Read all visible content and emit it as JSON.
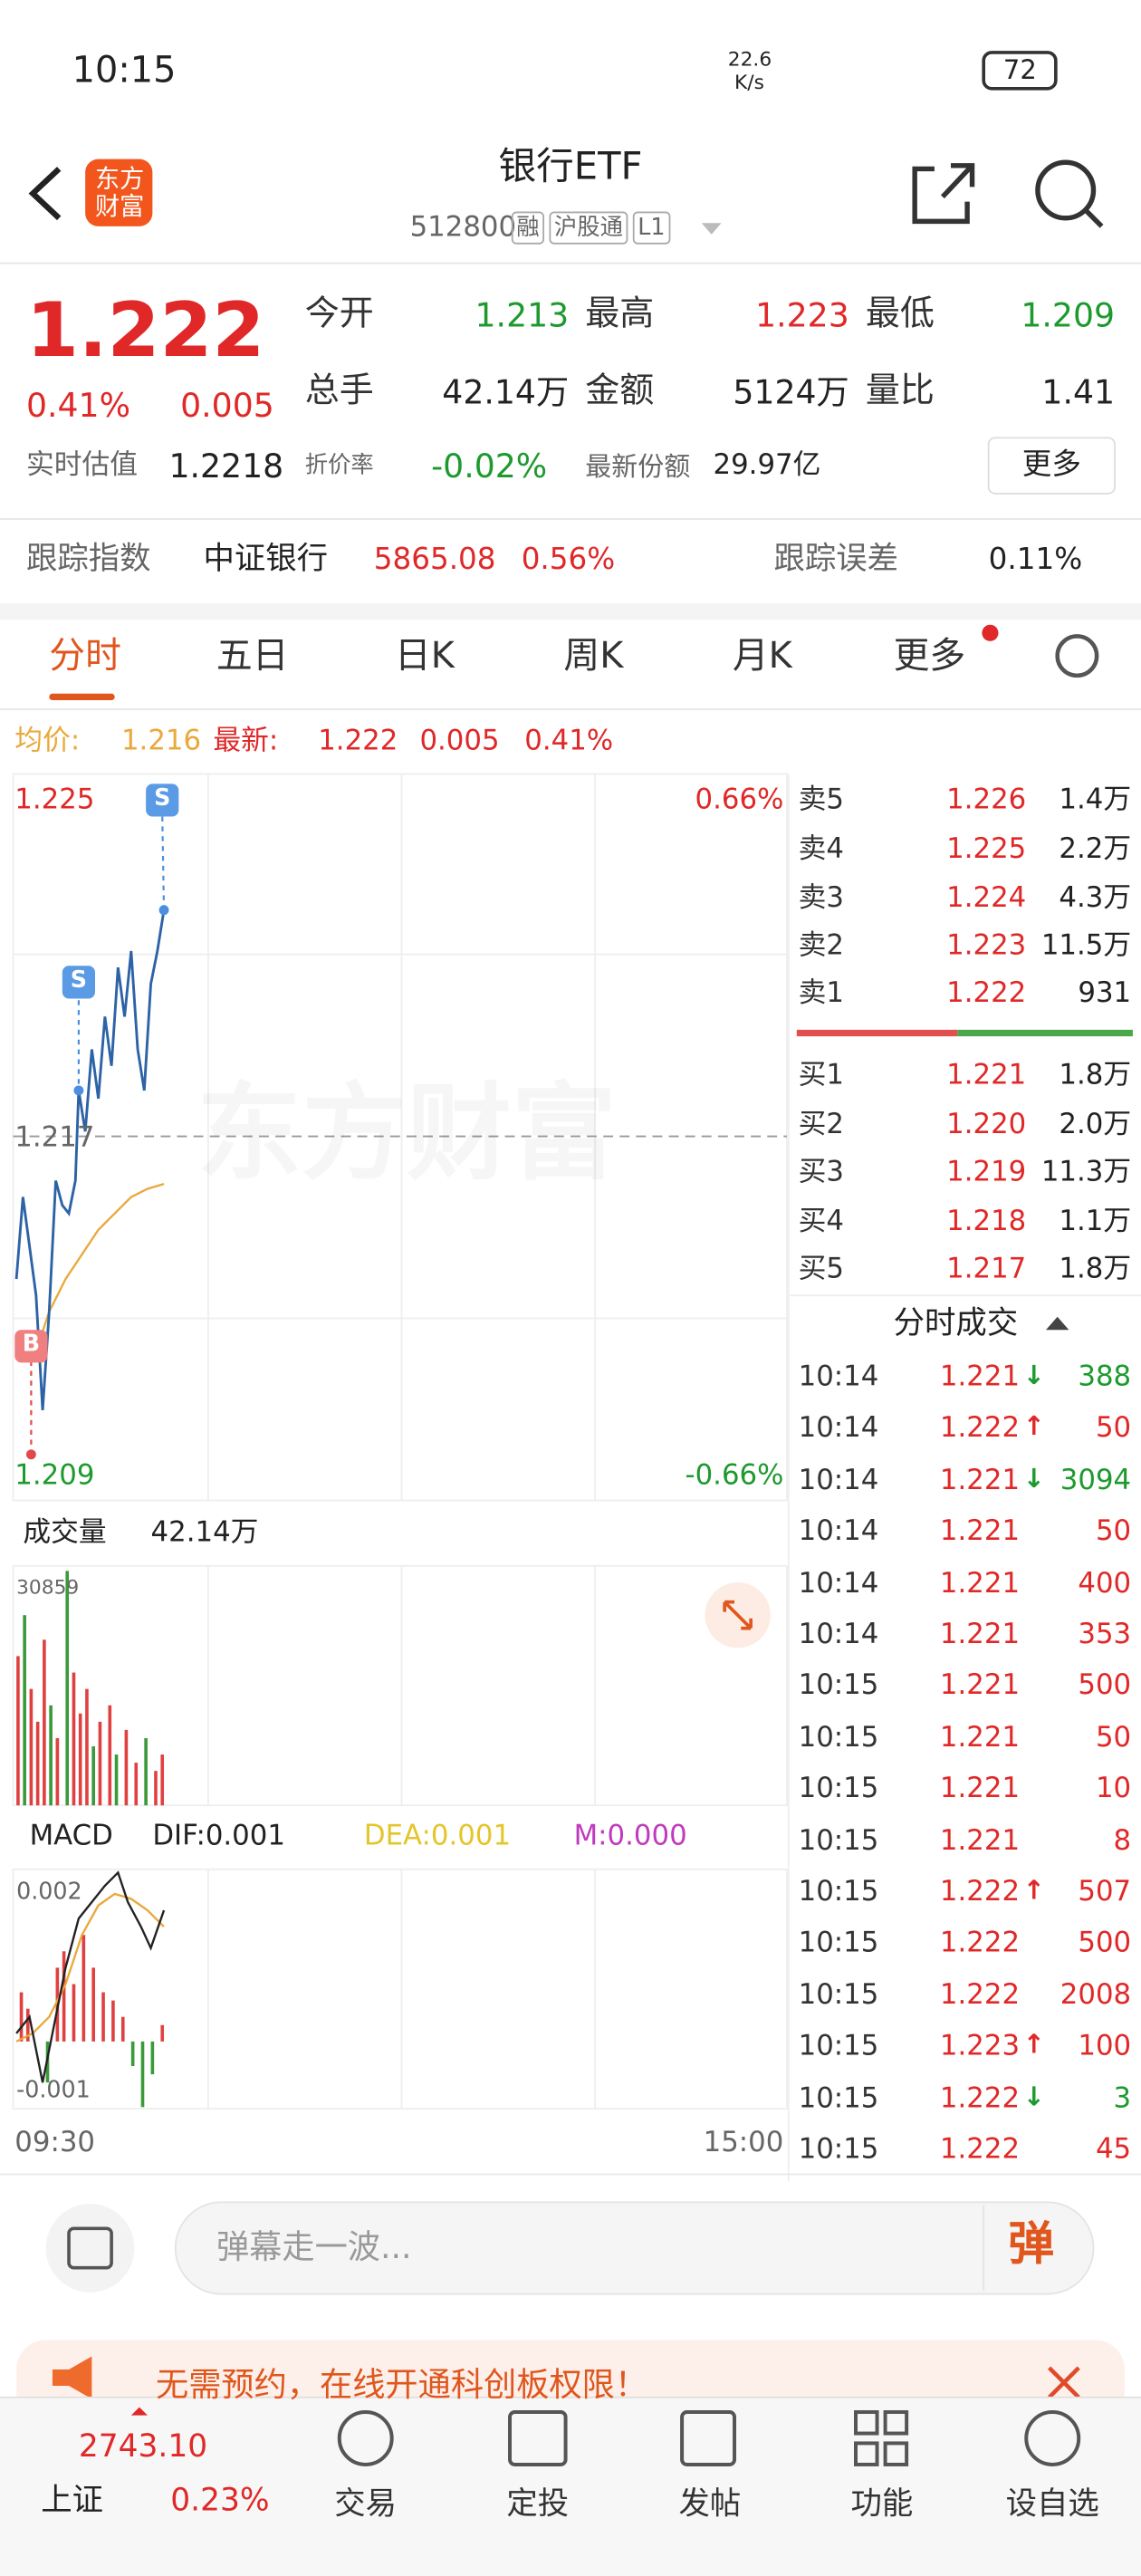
{
  "status": {
    "time": "10:15",
    "speed": "22.6",
    "speed_unit": "K/s",
    "battery": "72"
  },
  "header": {
    "logo": "东方财富",
    "title": "银行ETF",
    "code": "512800",
    "tags": [
      "融",
      "沪股通",
      "L1"
    ]
  },
  "quote": {
    "price": "1.222",
    "change_pct": "0.41%",
    "change": "0.005",
    "stats": [
      {
        "label": "今开",
        "value": "1.213"
      },
      {
        "label": "最高",
        "value": "1.223"
      },
      {
        "label": "最低",
        "value": "1.209"
      },
      {
        "label": "总手",
        "value": "42.14万"
      },
      {
        "label": "金额",
        "value": "5124万"
      },
      {
        "label": "量比",
        "value": "1.41"
      }
    ]
  },
  "estimate": {
    "label": "实时估值",
    "value": "1.2218",
    "discount_label": "折价率",
    "discount": "-0.02%",
    "share_label": "最新份额",
    "share": "29.97亿",
    "more": "更多"
  },
  "tracking": {
    "label": "跟踪指数",
    "index": "中证银行",
    "value": "5865.08",
    "pct": "0.56%",
    "error_label": "跟踪误差",
    "error": "0.11%"
  },
  "tabs": [
    "分时",
    "五日",
    "日K",
    "周K",
    "月K",
    "更多"
  ],
  "summary": {
    "avg_label": "均价:",
    "avg": "1.216",
    "latest_label": "最新:",
    "latest": "1.222",
    "change": "0.005",
    "pct": "0.41%"
  },
  "chart": {
    "y_top": "1.225",
    "y_mid": "1.217",
    "y_bottom": "1.209",
    "pct_top": "0.66%",
    "pct_bottom": "-0.66%",
    "watermark": "东方财富",
    "markers": [
      "S",
      "S",
      "B"
    ]
  },
  "volume": {
    "label": "成交量",
    "value": "42.14万",
    "max": "30859"
  },
  "macd": {
    "label": "MACD",
    "dif": "DIF:0.001",
    "dea": "DEA:0.001",
    "m": "M:0.000",
    "top": "0.002",
    "bottom": "-0.001"
  },
  "time_axis": [
    "09:30",
    "15:00"
  ],
  "asks": [
    {
      "label": "卖5",
      "price": "1.226",
      "vol": "1.4万"
    },
    {
      "label": "卖4",
      "price": "1.225",
      "vol": "2.2万"
    },
    {
      "label": "卖3",
      "price": "1.224",
      "vol": "4.3万"
    },
    {
      "label": "卖2",
      "price": "1.223",
      "vol": "11.5万"
    },
    {
      "label": "卖1",
      "price": "1.222",
      "vol": "931"
    }
  ],
  "bids": [
    {
      "label": "买1",
      "price": "1.221",
      "vol": "1.8万"
    },
    {
      "label": "买2",
      "price": "1.220",
      "vol": "2.0万"
    },
    {
      "label": "买3",
      "price": "1.219",
      "vol": "11.3万"
    },
    {
      "label": "买4",
      "price": "1.218",
      "vol": "1.1万"
    },
    {
      "label": "买5",
      "price": "1.217",
      "vol": "1.8万"
    }
  ],
  "trades_title": "分时成交",
  "trades": [
    {
      "time": "10:14",
      "price": "1.221",
      "dir": "down",
      "vol": "388"
    },
    {
      "time": "10:14",
      "price": "1.222",
      "dir": "up",
      "vol": "50"
    },
    {
      "time": "10:14",
      "price": "1.221",
      "dir": "down",
      "vol": "3094"
    },
    {
      "time": "10:14",
      "price": "1.221",
      "vol": "50"
    },
    {
      "time": "10:14",
      "price": "1.221",
      "vol": "400"
    },
    {
      "time": "10:14",
      "price": "1.221",
      "vol": "353"
    },
    {
      "time": "10:15",
      "price": "1.221",
      "vol": "500"
    },
    {
      "time": "10:15",
      "price": "1.221",
      "vol": "50"
    },
    {
      "time": "10:15",
      "price": "1.221",
      "vol": "10"
    },
    {
      "time": "10:15",
      "price": "1.221",
      "vol": "8"
    },
    {
      "time": "10:15",
      "price": "1.222",
      "dir": "up",
      "vol": "507"
    },
    {
      "time": "10:15",
      "price": "1.222",
      "vol": "500"
    },
    {
      "time": "10:15",
      "price": "1.222",
      "vol": "2008"
    },
    {
      "time": "10:15",
      "price": "1.223",
      "dir": "up",
      "vol": "100"
    },
    {
      "time": "10:15",
      "price": "1.222",
      "dir": "down",
      "vol": "3"
    },
    {
      "time": "10:15",
      "price": "1.222",
      "vol": "45"
    }
  ],
  "comment": {
    "placeholder": "弹幕走一波...",
    "button": "弹"
  },
  "banner": {
    "text": "无需预约，在线开通科创板权限！"
  },
  "bottom_nav": {
    "index": {
      "name": "上证",
      "value": "2743.10",
      "pct": "0.23%"
    },
    "items": [
      "交易",
      "定投",
      "发帖",
      "功能",
      "设自选"
    ]
  }
}
